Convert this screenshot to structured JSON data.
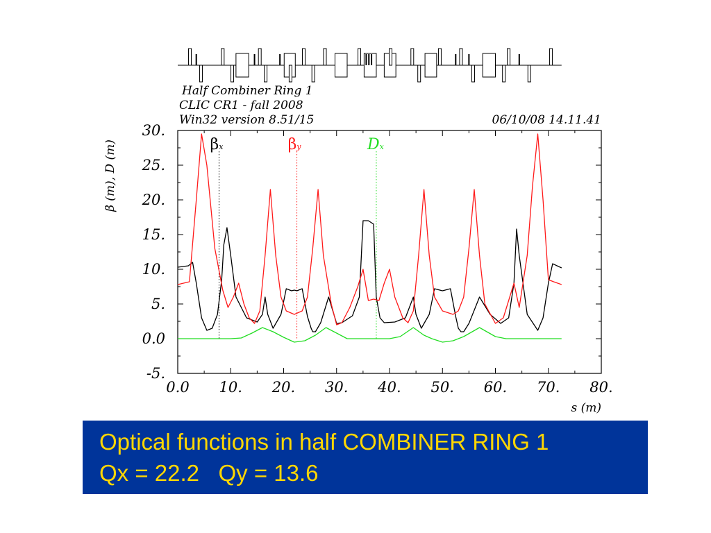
{
  "header": {
    "title": "Half Combiner Ring 1",
    "subtitle": "CLIC CR1 - fall 2008",
    "version": "Win32 version 8.51/15",
    "timestamp": "06/10/08  14.11.41"
  },
  "caption": {
    "line1": "Optical functions in half COMBINER RING 1",
    "line2": "Qx = 22.2   Qy = 13.6"
  },
  "chart_data": {
    "type": "line",
    "ylabel": "β  (m),  D (m)",
    "xlabel": "s (m)",
    "xlim": [
      0,
      80
    ],
    "ylim": [
      -5,
      30
    ],
    "xticks": [
      "0.0",
      "10.",
      "20.",
      "30.",
      "40.",
      "50.",
      "60.",
      "70.",
      "80."
    ],
    "yticks": [
      "-5.",
      "0.0",
      "5.",
      "10.",
      "15.",
      "20.",
      "25.",
      "30."
    ],
    "grid": false,
    "legend_placement": "top",
    "series": [
      {
        "name": "βx",
        "label_main": "β",
        "label_sub": "x",
        "color": "#000000",
        "x": [
          0,
          2,
          2.8,
          3.5,
          4.5,
          5.5,
          6.5,
          7.5,
          8.3,
          8.7,
          9.3,
          10,
          11,
          13,
          15,
          16,
          16.5,
          17,
          18,
          19.5,
          20.5,
          21.5,
          22,
          22.5,
          23.5,
          24.5,
          25.2,
          25.5,
          26,
          27,
          28.5,
          29.5,
          30,
          31,
          33,
          34.3,
          35,
          36,
          37,
          37.5,
          38.2,
          39,
          41,
          43,
          44.5,
          45,
          46,
          47.5,
          48.5,
          50,
          51.5,
          52.5,
          53,
          53.5,
          54,
          55,
          57,
          59,
          61,
          62.5,
          63.5,
          64,
          64.5,
          66,
          68,
          69,
          70,
          70.8,
          72.5
        ],
        "y": [
          10.3,
          10.5,
          11,
          8,
          3,
          1.2,
          1.5,
          3.5,
          8.5,
          13.5,
          16,
          12,
          6,
          3,
          2.4,
          3.5,
          6,
          3.5,
          1.5,
          3.5,
          7.2,
          6.9,
          7,
          6.9,
          7.2,
          3.2,
          1.5,
          1,
          1,
          2.3,
          6,
          3.5,
          2.2,
          2.3,
          3.3,
          6,
          17,
          17,
          16.5,
          6,
          3,
          2.3,
          2.4,
          3,
          6,
          3.5,
          1.5,
          3.5,
          7.2,
          6.9,
          7.2,
          3.2,
          1.5,
          1,
          1,
          2.2,
          6,
          3.5,
          2.2,
          3,
          8,
          15.8,
          12,
          3.5,
          1.2,
          3,
          8,
          10.8,
          10.2
        ]
      },
      {
        "name": "βy",
        "label_main": "β",
        "label_sub": "y",
        "color": "#ff1a1a",
        "x": [
          0,
          2.2,
          3.5,
          4.5,
          5.5,
          7,
          8.5,
          9.5,
          10.5,
          11.5,
          12.5,
          13.5,
          14.5,
          15.5,
          16.5,
          17.5,
          18.5,
          19.5,
          20.5,
          22,
          23.5,
          24.5,
          25.5,
          26.5,
          27.5,
          29,
          30,
          31,
          32.5,
          34,
          35,
          36,
          37,
          38,
          39,
          40,
          41,
          42.5,
          43.5,
          44.5,
          45.5,
          46.5,
          47.5,
          48.5,
          50,
          52,
          53,
          54,
          55,
          56,
          57,
          58,
          60,
          61.5,
          62.5,
          63.5,
          64.5,
          66,
          67,
          68,
          69,
          70,
          71,
          72.5
        ],
        "y": [
          7.8,
          8.2,
          20,
          29.5,
          25,
          13,
          7,
          4.5,
          6,
          8,
          5,
          3,
          2.2,
          4,
          12,
          21.5,
          12,
          6,
          4,
          3.5,
          4,
          6,
          13,
          21.5,
          12,
          5,
          2,
          2.3,
          4.5,
          7.5,
          10,
          5.5,
          5.7,
          5.5,
          8,
          10,
          6,
          3,
          2.3,
          4,
          12,
          21.5,
          12,
          6,
          4,
          3.5,
          4,
          6,
          13,
          21.5,
          12,
          5,
          2.2,
          3,
          5.5,
          8,
          4.5,
          12,
          22,
          29.5,
          20,
          8.5,
          8.2,
          7.8
        ]
      },
      {
        "name": "Dx",
        "label_main": "D",
        "label_sub": "x",
        "color": "#22dd22",
        "x": [
          0,
          10,
          12,
          14,
          16,
          18,
          20,
          22,
          24,
          26,
          28,
          30,
          32,
          34,
          37.5,
          40,
          42,
          44.5,
          46.5,
          48,
          50,
          52,
          54,
          57,
          60,
          62,
          72.5
        ],
        "y": [
          0,
          0,
          0.1,
          0.8,
          1.6,
          1,
          0.2,
          -0.5,
          -0.3,
          0.5,
          1.6,
          0.8,
          0,
          0,
          0,
          0,
          0.3,
          1.6,
          0.5,
          0,
          -0.5,
          -0.3,
          0.3,
          1.6,
          0.3,
          0,
          0
        ]
      }
    ],
    "marker_lines": [
      {
        "series": "βx",
        "x": 7.8
      },
      {
        "series": "βy",
        "x": 22.5
      },
      {
        "series": "Dx",
        "x": 37.5
      }
    ]
  },
  "lattice": {
    "x_range": [
      0,
      72.5
    ],
    "quads": [
      {
        "s": 2.3,
        "dir": 1
      },
      {
        "s": 4.4,
        "dir": -1
      },
      {
        "s": 8.5,
        "dir": 1
      },
      {
        "s": 10.3,
        "dir": -1
      },
      {
        "s": 15.5,
        "dir": 1
      },
      {
        "s": 16.6,
        "dir": -1
      },
      {
        "s": 21.3,
        "dir": -1
      },
      {
        "s": 23.8,
        "dir": 1
      },
      {
        "s": 25.6,
        "dir": -1
      },
      {
        "s": 27.8,
        "dir": 1
      },
      {
        "s": 34.3,
        "dir": 1
      },
      {
        "s": 40.2,
        "dir": 1
      },
      {
        "s": 44.3,
        "dir": 1
      },
      {
        "s": 45.6,
        "dir": -1
      },
      {
        "s": 49.5,
        "dir": 1
      },
      {
        "s": 53.5,
        "dir": 1
      },
      {
        "s": 55.8,
        "dir": -1
      },
      {
        "s": 61.6,
        "dir": -1
      },
      {
        "s": 62.5,
        "dir": 1
      },
      {
        "s": 66.4,
        "dir": -1
      },
      {
        "s": 70.5,
        "dir": 1
      }
    ],
    "dipoles": [
      {
        "s0": 11,
        "s1": 13.4
      },
      {
        "s0": 20.1,
        "s1": 22.2
      },
      {
        "s0": 29.7,
        "s1": 32
      },
      {
        "s0": 35.2,
        "s1": 37.5
      },
      {
        "s0": 39,
        "s1": 41.2
      },
      {
        "s0": 46.7,
        "s1": 48.9
      },
      {
        "s0": 57.6,
        "s1": 60
      }
    ],
    "sextupoles": [
      {
        "s": 3.5,
        "dir": 1
      },
      {
        "s": 14.5,
        "dir": 1
      },
      {
        "s": 19.3,
        "dir": 1
      },
      {
        "s": 35.6,
        "dir": 1
      },
      {
        "s": 36.1,
        "dir": 1
      },
      {
        "s": 36.6,
        "dir": 1
      },
      {
        "s": 52.5,
        "dir": 1
      },
      {
        "s": 55,
        "dir": 1
      },
      {
        "s": 64.5,
        "dir": 1
      }
    ]
  }
}
